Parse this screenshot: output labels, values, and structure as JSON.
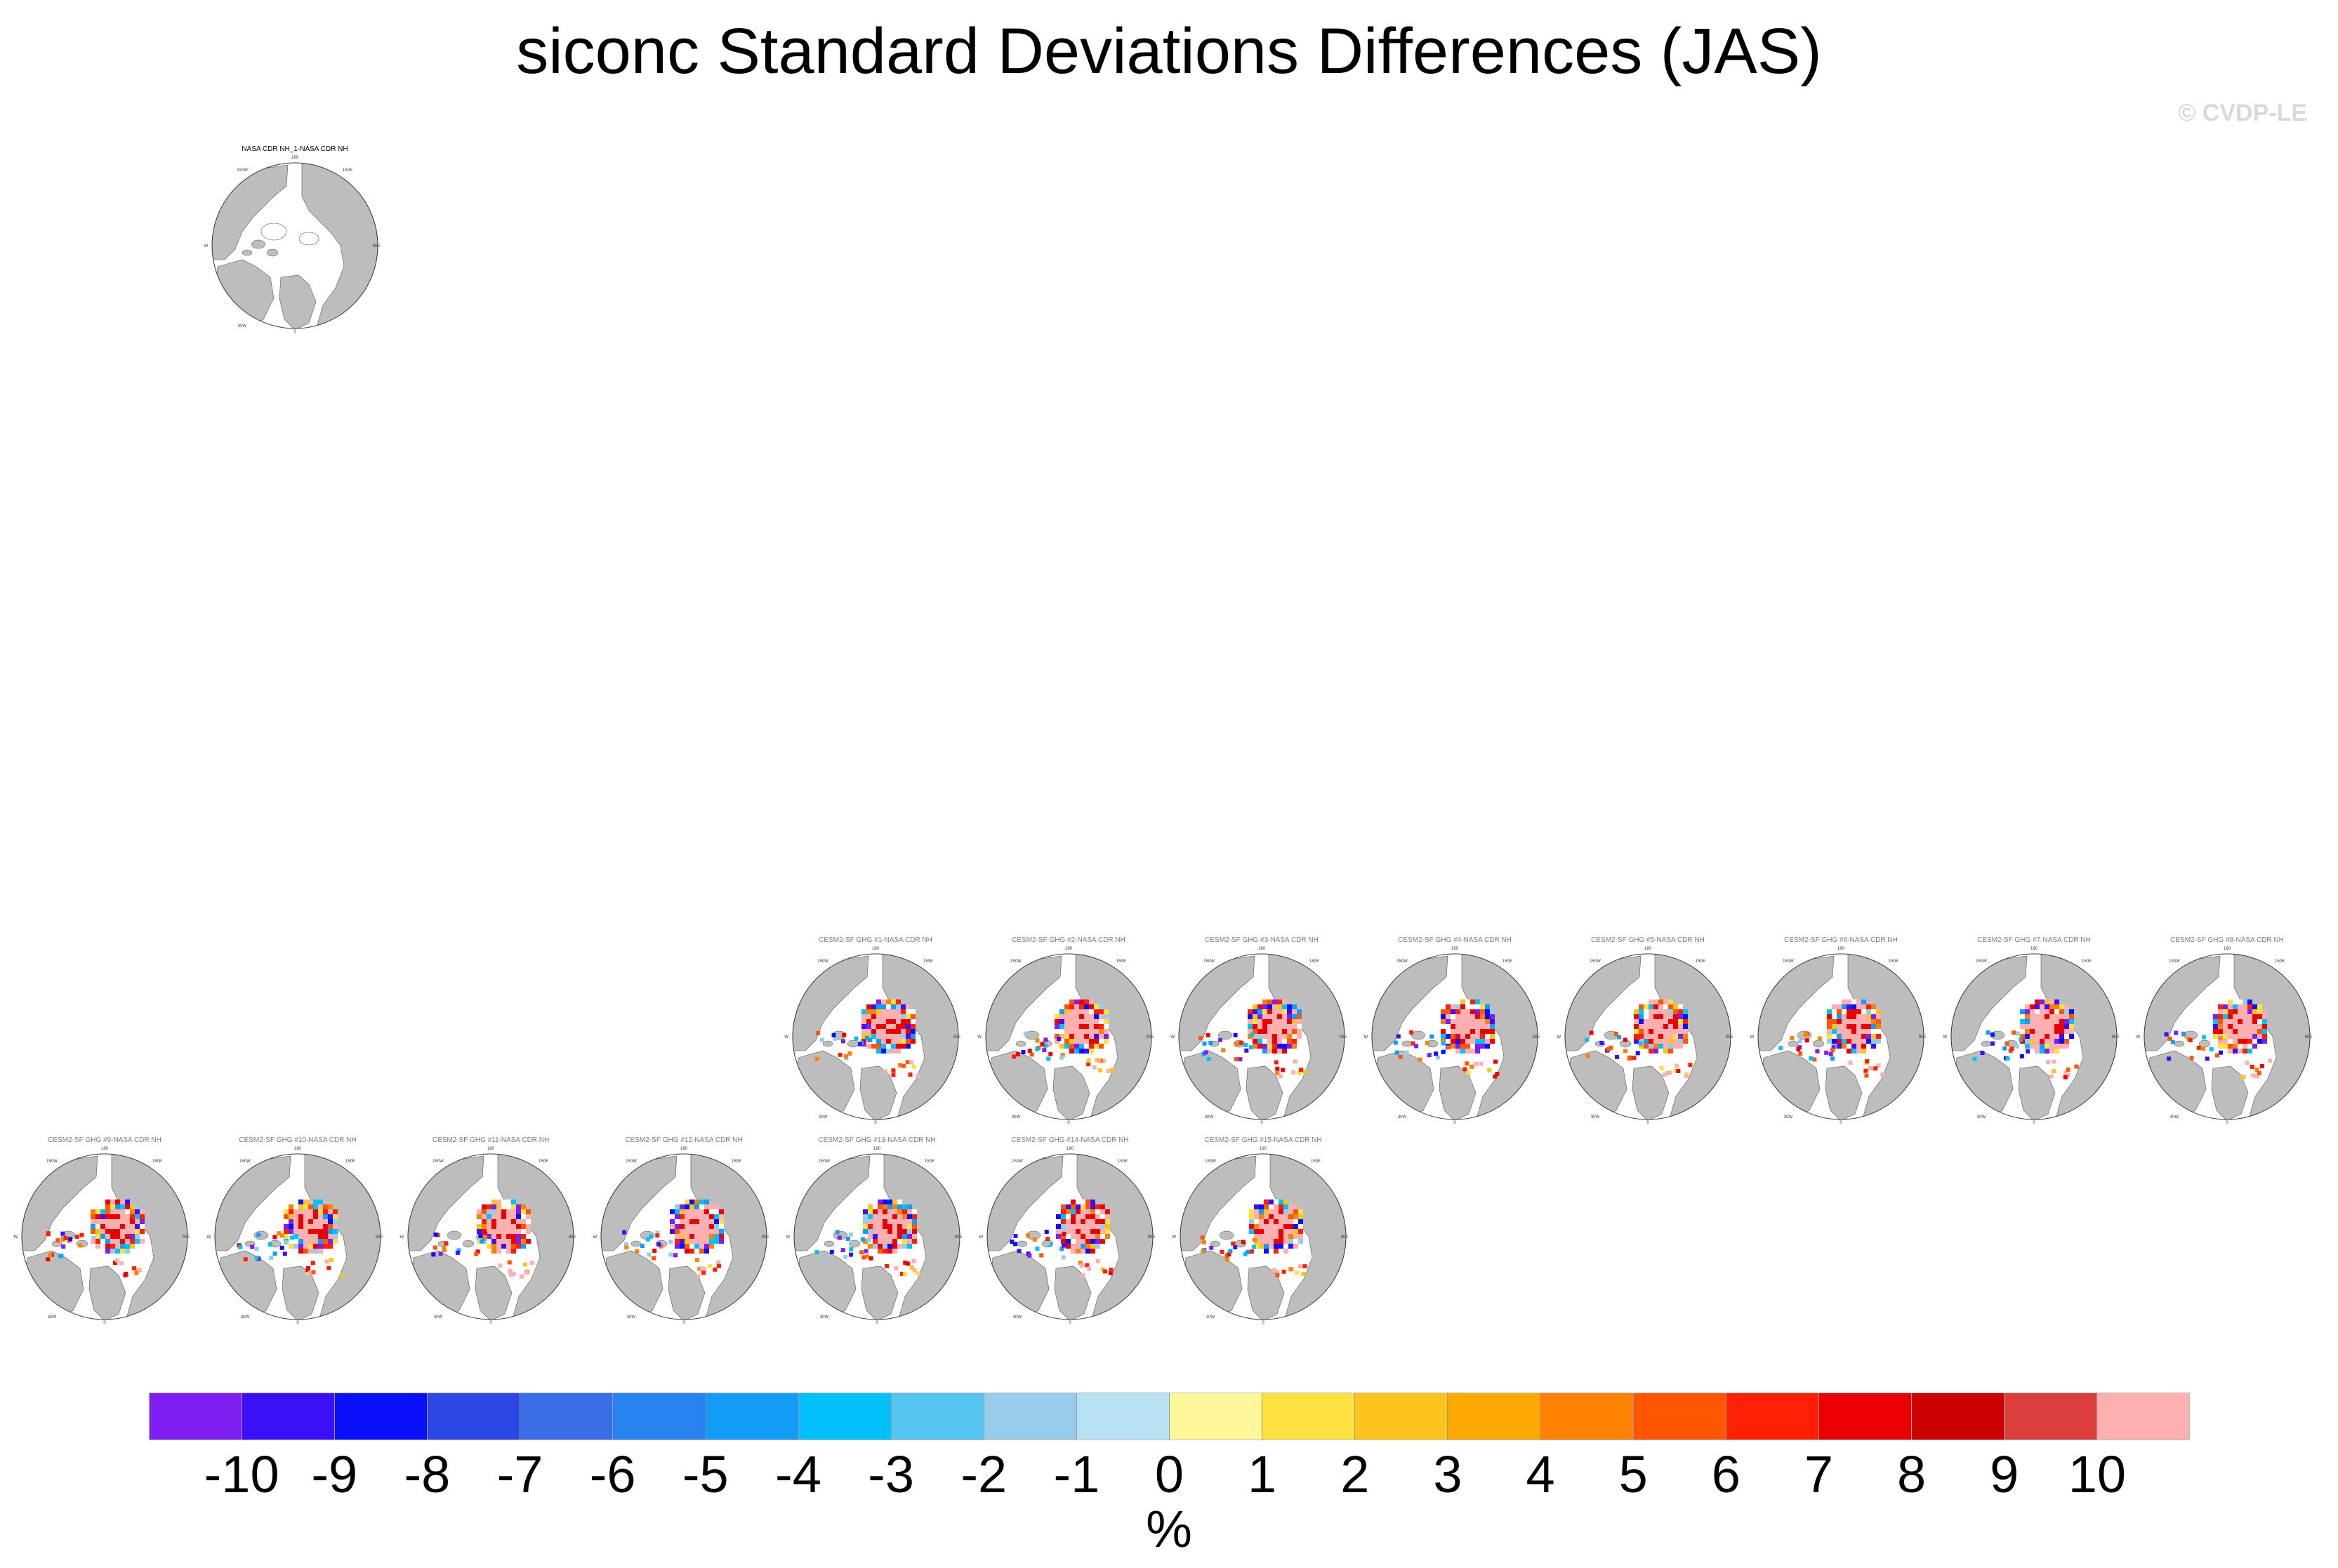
{
  "title": "siconc Standard Deviations Differences (JAS)",
  "watermark": "© CVDP-LE",
  "panels": [
    {
      "title": "NASA CDR NH_1-NASA CDR NH",
      "type": "observation"
    },
    {
      "title": "CESM2-SF GHG #1-NASA CDR NH",
      "type": "member"
    },
    {
      "title": "CESM2-SF GHG #2-NASA CDR NH",
      "type": "member"
    },
    {
      "title": "CESM2-SF GHG #3-NASA CDR NH",
      "type": "member"
    },
    {
      "title": "CESM2-SF GHG #4-NASA CDR NH",
      "type": "member"
    },
    {
      "title": "CESM2-SF GHG #5-NASA CDR NH",
      "type": "member"
    },
    {
      "title": "CESM2-SF GHG #6-NASA CDR NH",
      "type": "member"
    },
    {
      "title": "CESM2-SF GHG #7-NASA CDR NH",
      "type": "member"
    },
    {
      "title": "CESM2-SF GHG #8-NASA CDR NH",
      "type": "member"
    },
    {
      "title": "CESM2-SF GHG #9-NASA CDR NH",
      "type": "member"
    },
    {
      "title": "CESM2-SF GHG #10-NASA CDR NH",
      "type": "member"
    },
    {
      "title": "CESM2-SF GHG #11-NASA CDR NH",
      "type": "member"
    },
    {
      "title": "CESM2-SF GHG #12-NASA CDR NH",
      "type": "member"
    },
    {
      "title": "CESM2-SF GHG #13-NASA CDR NH",
      "type": "member"
    },
    {
      "title": "CESM2-SF GHG #14-NASA CDR NH",
      "type": "member"
    },
    {
      "title": "CESM2-SF GHG #15-NASA CDR NH",
      "type": "member"
    }
  ],
  "map_labels": {
    "top": "180",
    "top_left": "150W",
    "top_right": "150E",
    "left": "90W",
    "right": "90E",
    "bottom_left": "30W",
    "bottom": "0"
  },
  "colorbar": {
    "colors": [
      "#7e1ef0",
      "#3c10f6",
      "#0b10fa",
      "#2d46e6",
      "#3a6ee6",
      "#2782f0",
      "#129cf6",
      "#02c0fa",
      "#56c4f0",
      "#98cceb",
      "#b9e1f4",
      "#fff89a",
      "#ffe142",
      "#fdc41e",
      "#fda902",
      "#fd8201",
      "#fe5603",
      "#fe2004",
      "#ea0004",
      "#cc0000",
      "#dc3e3e",
      "#feb0b0"
    ],
    "labels": [
      "-10",
      "-9",
      "-8",
      "-7",
      "-6",
      "-5",
      "-4",
      "-3",
      "-2",
      "-1",
      "0",
      "1",
      "2",
      "3",
      "4",
      "5",
      "6",
      "7",
      "8",
      "9",
      "10"
    ],
    "units": "%"
  }
}
